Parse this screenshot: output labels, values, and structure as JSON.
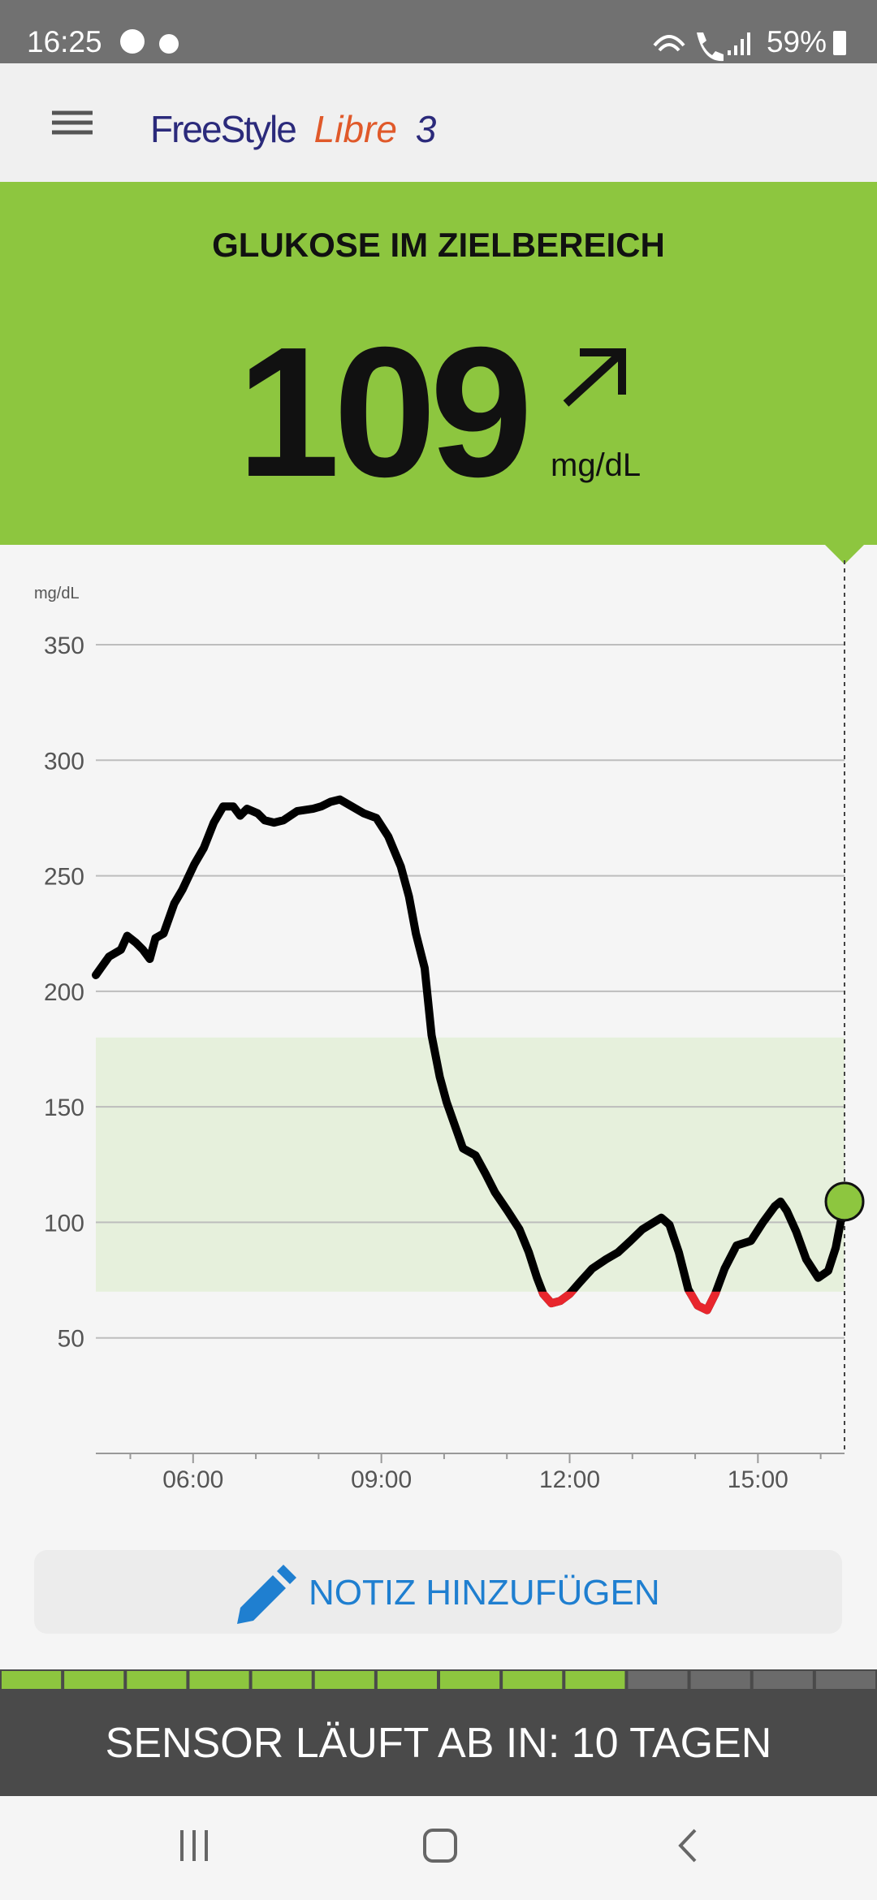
{
  "status_bar": {
    "time": "16:25",
    "battery": "59%"
  },
  "header": {
    "logo_part1": "FreeStyle",
    "logo_part2": "Libre",
    "logo_part3": "3"
  },
  "banner": {
    "title": "GLUKOSE IM ZIELBEREICH",
    "value": "109",
    "unit": "mg/dL"
  },
  "chart_data": {
    "type": "line",
    "y_label": "mg/dL",
    "x": [
      4.45,
      4.66,
      4.85,
      4.95,
      5.09,
      5.2,
      5.31,
      5.4,
      5.53,
      5.7,
      5.83,
      6.02,
      6.17,
      6.33,
      6.48,
      6.64,
      6.75,
      6.86,
      7.03,
      7.14,
      7.29,
      7.44,
      7.66,
      7.91,
      8.04,
      8.19,
      8.34,
      8.53,
      8.72,
      8.92,
      9.11,
      9.31,
      9.44,
      9.55,
      9.69,
      9.8,
      9.93,
      10.04,
      10.17,
      10.3,
      10.5,
      10.66,
      10.81,
      11.01,
      11.2,
      11.35,
      11.48,
      11.58,
      11.71,
      11.85,
      12.0,
      12.16,
      12.36,
      12.58,
      12.77,
      12.97,
      13.16,
      13.46,
      13.59,
      13.74,
      13.89,
      14.04,
      14.19,
      14.32,
      14.47,
      14.66,
      14.89,
      15.08,
      15.27,
      15.36,
      15.46,
      15.61,
      15.77,
      15.96,
      16.12,
      16.24,
      16.38
    ],
    "series": [
      {
        "name": "Glukose",
        "color": "#000000",
        "low_color": "#e8262d",
        "values": [
          207,
          215,
          218,
          224,
          221,
          218,
          214,
          223,
          225,
          238,
          244,
          255,
          262,
          273,
          280,
          280,
          276,
          279,
          277,
          274,
          273,
          274,
          278,
          279,
          280,
          282,
          283,
          280,
          277,
          275,
          267,
          254,
          241,
          225,
          210,
          181,
          163,
          152,
          142,
          132,
          129,
          121,
          113,
          105,
          97,
          87,
          76,
          69,
          65,
          66,
          69,
          74,
          80,
          84,
          87,
          92,
          97,
          102,
          99,
          87,
          71,
          64,
          62,
          69,
          80,
          90,
          92,
          100,
          107,
          109,
          105,
          96,
          84,
          76,
          79,
          89,
          109
        ]
      }
    ],
    "target_range": [
      70,
      180
    ],
    "target_color": "#e6f0dc",
    "xlim": [
      4.45,
      16.38
    ],
    "xticks": [
      {
        "value": 6,
        "label": "06:00"
      },
      {
        "value": 9,
        "label": "09:00"
      },
      {
        "value": 12,
        "label": "12:00"
      },
      {
        "value": 15,
        "label": "15:00"
      }
    ],
    "minor_xticks": [
      5,
      7,
      8,
      10,
      11,
      13,
      14,
      16
    ],
    "ylim": [
      0,
      350
    ],
    "yticks": [
      50,
      100,
      150,
      200,
      250,
      300,
      350
    ],
    "grid": true
  },
  "note_button": {
    "label": "NOTIZ HINZUFÜGEN"
  },
  "sensor": {
    "text": "SENSOR LÄUFT AB IN: 10 TAGEN",
    "days_total": 14,
    "days_remaining": 10
  }
}
